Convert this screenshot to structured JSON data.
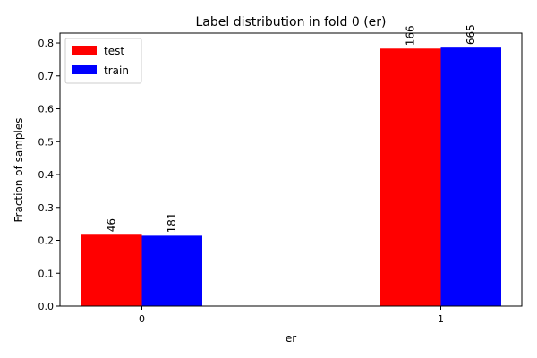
{
  "chart_data": {
    "type": "bar",
    "title": "Label distribution in fold 0 (er)",
    "xlabel": "er",
    "ylabel": "Fraction of samples",
    "categories": [
      "0",
      "1"
    ],
    "ylim": [
      0,
      0.83
    ],
    "yticks": [
      0.0,
      0.1,
      0.2,
      0.3,
      0.4,
      0.5,
      0.6,
      0.7,
      0.8
    ],
    "grid": false,
    "legend": "top-left",
    "series": [
      {
        "name": "test",
        "color": "#ff0000",
        "values": [
          0.217,
          0.783
        ],
        "labels": [
          "46",
          "166"
        ]
      },
      {
        "name": "train",
        "color": "#0000ff",
        "values": [
          0.214,
          0.786
        ],
        "labels": [
          "181",
          "665"
        ]
      }
    ]
  }
}
